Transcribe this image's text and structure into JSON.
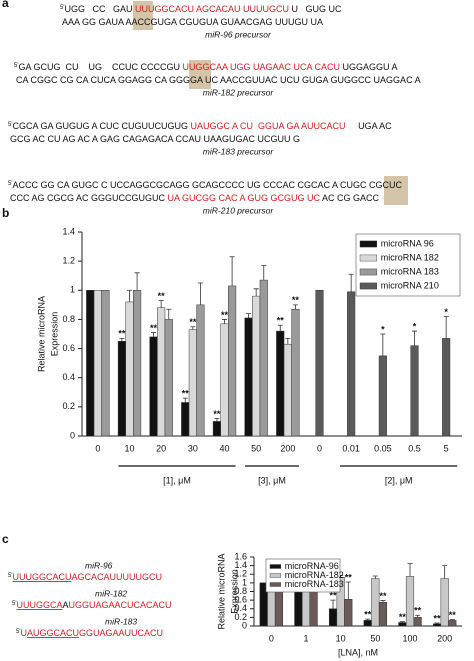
{
  "panel_labels": [
    "a",
    "b",
    "c"
  ],
  "precursors": [
    {
      "prime": "5'",
      "top": [
        {
          "text": "UGG   CC   GAU ",
          "color": "#111111"
        },
        {
          "text": "UUUGGCACU AGCACAU UUUUGCU",
          "color": "#d62020"
        },
        {
          "text": " U   GUG UC",
          "color": "#111111"
        }
      ],
      "bottom": [
        {
          "text": "AAA GG GAUA AACCGUGA CGUGUA GUAACGAG UUUGU UA",
          "color": "#111111"
        }
      ],
      "label": "miR-96 precursor"
    },
    {
      "prime": "5'",
      "top": [
        {
          "text": "GA GCUG  CU    UG    CCUC CCCCGU ",
          "color": "#111111"
        },
        {
          "text": "UUGGCAA UGG UAGAAC UCA CACU",
          "color": "#d62020"
        },
        {
          "text": " UGGAGGU A",
          "color": "#111111"
        }
      ],
      "bottom": [
        {
          "text": "CA CGGC CG CA CUCA GGAGG CA GGGGA UC AACCGUUAC UCU GUGA GUGGCC UAGGAC A",
          "color": "#111111"
        }
      ],
      "label": "miR-182 precursor"
    },
    {
      "prime": "5'",
      "top": [
        {
          "text": "CGCA GA GUGUG A CUC CUGUUCUGUG ",
          "color": "#111111"
        },
        {
          "text": "UAUGGC A CU  GGUA GA AUUCACU",
          "color": "#d62020"
        },
        {
          "text": "     UGA AC",
          "color": "#111111"
        }
      ],
      "bottom": [
        {
          "text": "GCG AC CU AG AC A GAG CAGAGACA CCAU UAAGUGAC UCGUU G",
          "color": "#111111"
        }
      ],
      "label": "miR-183 precursor"
    },
    {
      "prime": "5'",
      "top": [
        {
          "text": "ACCC GG CA GUGC C UCCAGGCGCAGG GCAGCCCC UG CCCAC CGCAC A CUGC CGCUC",
          "color": "#111111"
        }
      ],
      "bottom": [
        {
          "text": "CCC AG CGCG AC GGGUCCGUGUC ",
          "color": "#111111"
        },
        {
          "text": "UA GUCGG CAC A GUG GCGUG UC",
          "color": "#d62020"
        },
        {
          "text": " AC CG GACC",
          "color": "#111111"
        }
      ],
      "label": "miR-210 precursor"
    }
  ],
  "mature": [
    {
      "name": "miR-96",
      "prime": "5'",
      "sequence": [
        {
          "text": "UUUGGCACU",
          "color": "#d62020",
          "underline": true
        },
        {
          "text": "AGCACAUUUUUGCU",
          "color": "#d62020"
        }
      ]
    },
    {
      "name": "miR-182",
      "prime": "5'",
      "sequence": [
        {
          "text": "UUUGGCA",
          "color": "#d62020",
          "underline": true
        },
        {
          "text": "A",
          "color": "#111111"
        },
        {
          "text": "UGGUAGAACUCACACU",
          "color": "#d62020"
        }
      ]
    },
    {
      "name": "miR-183",
      "prime": "5'",
      "sequence": [
        {
          "text": "U",
          "color": "#d62020"
        },
        {
          "text": "AUGGCACU",
          "color": "#d62020",
          "underline": true
        },
        {
          "text": "GGUAGAAUUCACU",
          "color": "#d62020"
        }
      ]
    }
  ],
  "chart_data": [
    {
      "type": "bar",
      "ylabel_lines": [
        "Relative microRNA",
        "Expression"
      ],
      "categories": [
        "0",
        "10",
        "20",
        "30",
        "40",
        "50",
        "200",
        "0",
        "0.01",
        "0.05",
        "0.5",
        "5"
      ],
      "groups": [
        "[1], μM",
        "[3], μM",
        "[2], μM"
      ],
      "ylim": [
        0,
        1.4
      ],
      "yticks": [
        0,
        0.2,
        0.4,
        0.6,
        0.8,
        1,
        1.2,
        1.4
      ],
      "legend": "upper right",
      "series": [
        {
          "name": "microRNA 96",
          "color": "#111111",
          "values": [
            1,
            0.65,
            0.68,
            0.23,
            0.1,
            0.81,
            0.72,
            null,
            null,
            null,
            null,
            null
          ],
          "errors": [
            null,
            0.02,
            0.03,
            0.03,
            0.02,
            0.03,
            0.04,
            null,
            null,
            null,
            null,
            null
          ],
          "significance": [
            null,
            "**",
            "**",
            "**",
            "**",
            null,
            "**",
            null,
            null,
            null,
            null,
            null
          ]
        },
        {
          "name": "microRNA 182",
          "color": "#d9d9d9",
          "values": [
            1,
            0.92,
            0.88,
            0.73,
            0.77,
            0.96,
            0.63,
            null,
            null,
            null,
            null,
            null
          ],
          "errors": [
            null,
            0.08,
            0.05,
            0.02,
            0.03,
            0.05,
            0.04,
            null,
            null,
            null,
            null,
            null
          ],
          "significance": [
            null,
            null,
            "**",
            "**",
            "**",
            null,
            null,
            null,
            null,
            null,
            null,
            null
          ]
        },
        {
          "name": "microRNA 183",
          "color": "#9a9a9a",
          "values": [
            1,
            1,
            0.8,
            0.9,
            1.03,
            1.07,
            0.87,
            null,
            null,
            null,
            null,
            null
          ],
          "errors": [
            null,
            0.12,
            0.07,
            0.15,
            0.2,
            0.1,
            0.03,
            null,
            null,
            null,
            null,
            null
          ],
          "significance": [
            null,
            null,
            null,
            null,
            null,
            null,
            "**",
            null,
            null,
            null,
            null,
            null
          ]
        },
        {
          "name": "microRNA 210",
          "color": "#5a5a5a",
          "values": [
            null,
            null,
            null,
            null,
            null,
            null,
            null,
            1,
            0.99,
            0.55,
            0.62,
            0.67
          ],
          "errors": [
            null,
            null,
            null,
            null,
            null,
            null,
            null,
            null,
            0.12,
            0.15,
            0.1,
            0.15
          ],
          "significance": [
            null,
            null,
            null,
            null,
            null,
            null,
            null,
            null,
            null,
            "*",
            "*",
            "*"
          ]
        }
      ]
    },
    {
      "type": "bar",
      "ylabel_lines": [
        "Relative microRNA",
        "Expression"
      ],
      "xlabel": "[LNA], nM",
      "categories": [
        "0",
        "1",
        "10",
        "50",
        "100",
        "200"
      ],
      "ylim": [
        0,
        1.6
      ],
      "yticks": [
        0,
        0.2,
        0.4,
        0.6,
        0.8,
        1,
        1.2,
        1.4,
        1.6
      ],
      "legend": "upper left",
      "series": [
        {
          "name": "microRNA-96",
          "color": "#111111",
          "values": [
            1,
            1.08,
            0.4,
            0.13,
            0.08,
            0.05
          ],
          "errors": [
            null,
            0.03,
            0.2,
            0.03,
            0.02,
            0.02
          ],
          "significance": [
            null,
            null,
            "**",
            "**",
            "**",
            "**"
          ]
        },
        {
          "name": "microRNA-182",
          "color": "#c8c8c8",
          "values": [
            1,
            1,
            1.13,
            1.1,
            1.15,
            1.1
          ],
          "errors": [
            null,
            0.03,
            0.04,
            0.06,
            0.3,
            0.3
          ],
          "significance": [
            null,
            null,
            null,
            null,
            null,
            null
          ]
        },
        {
          "name": "microRNA-183",
          "color": "#6b5a5a",
          "values": [
            1,
            1.05,
            0.62,
            0.55,
            0.2,
            0.13
          ],
          "errors": [
            null,
            0.05,
            0.4,
            0.04,
            0.05,
            0.02
          ],
          "significance": [
            null,
            null,
            "**",
            "**",
            "**",
            "**"
          ]
        }
      ]
    }
  ]
}
